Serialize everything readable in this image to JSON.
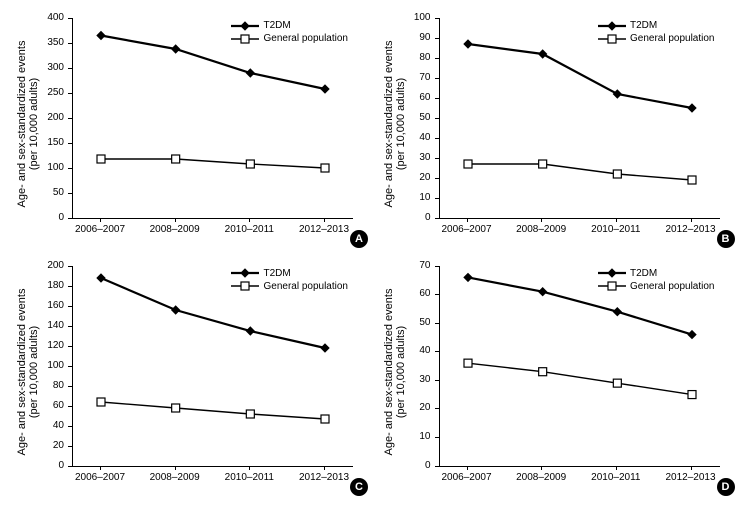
{
  "global": {
    "categories": [
      "2006–2007",
      "2008–2009",
      "2010–2011",
      "2012–2013"
    ],
    "ylabel_line1": "Age- and sex-standardized events",
    "ylabel_line2": "(per 10,000 adults)",
    "series_names": {
      "s1": "T2DM",
      "s2": "General population"
    },
    "colors": {
      "line": "#000000",
      "t2dm_fill": "#000000",
      "gen_fill": "#ffffff",
      "axis": "#000000",
      "bg": "#ffffff",
      "text": "#000000"
    },
    "line_width_t2dm": 2.2,
    "line_width_gen": 1.4,
    "marker_size_t2dm": 8,
    "marker_size_gen": 8,
    "font_size_axis": 10,
    "font_size_label": 11
  },
  "panels": {
    "A": {
      "badge": "A",
      "ylim": [
        0,
        400
      ],
      "ytick_step": 50,
      "t2dm": [
        365,
        338,
        290,
        258
      ],
      "gen": [
        118,
        118,
        108,
        100
      ]
    },
    "B": {
      "badge": "B",
      "ylim": [
        0,
        100
      ],
      "ytick_step": 10,
      "t2dm": [
        87,
        82,
        62,
        55
      ],
      "gen": [
        27,
        27,
        22,
        19
      ]
    },
    "C": {
      "badge": "C",
      "ylim": [
        0,
        200
      ],
      "ytick_step": 20,
      "t2dm": [
        188,
        156,
        135,
        118
      ],
      "gen": [
        64,
        58,
        52,
        47
      ]
    },
    "D": {
      "badge": "D",
      "ylim": [
        0,
        70
      ],
      "ytick_step": 10,
      "t2dm": [
        66,
        61,
        54,
        46
      ],
      "gen": [
        36,
        33,
        29,
        25
      ]
    }
  }
}
